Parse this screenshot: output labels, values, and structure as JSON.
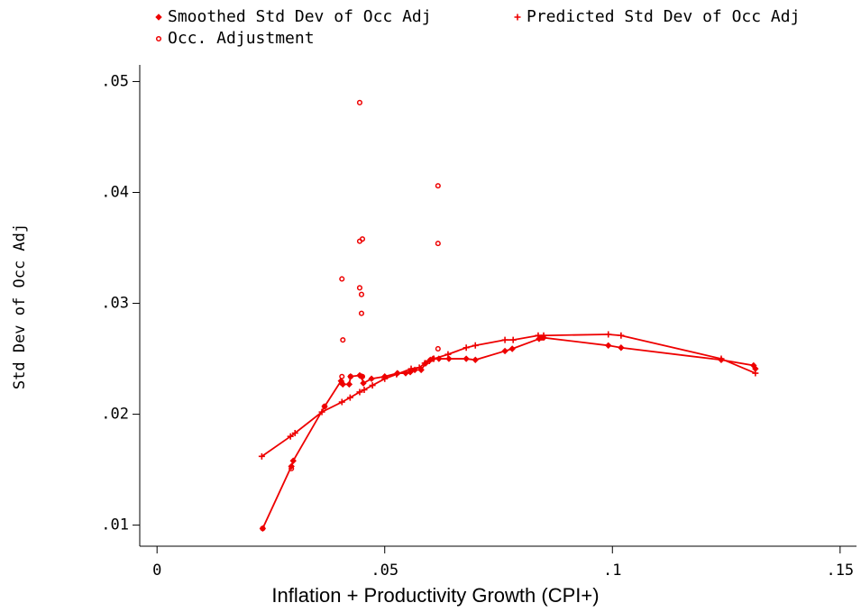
{
  "chart_data": {
    "type": "scatter",
    "x_label": "Inflation + Productivity Growth (CPI+)",
    "y_label": "Std Dev of Occ Adj",
    "xlim": [
      -0.0038,
      0.1536
    ],
    "ylim": [
      0.0081,
      0.0515
    ],
    "xticks": [
      0,
      {
        "value": 0.05,
        "label": ".05"
      },
      {
        "value": 0.1,
        "label": ".1"
      },
      {
        "value": 0.15,
        "label": ".15"
      }
    ],
    "yticks": [
      {
        "value": 0.01,
        "label": ".01"
      },
      {
        "value": 0.02,
        "label": ".02"
      },
      {
        "value": 0.03,
        "label": ".03"
      },
      {
        "value": 0.04,
        "label": ".04"
      },
      {
        "value": 0.05,
        "label": ".05"
      }
    ],
    "series": [
      {
        "name": "Smoothed Std Dev of Occ Adj",
        "color": "#ee0000",
        "marker": "diamond",
        "line": true,
        "x": [
          0.0232,
          0.0295,
          0.0299,
          0.0368,
          0.0404,
          0.0408,
          0.0422,
          0.0425,
          0.0445,
          0.0449,
          0.0453,
          0.0471,
          0.05,
          0.0528,
          0.0546,
          0.0556,
          0.0566,
          0.058,
          0.059,
          0.06,
          0.0606,
          0.0619,
          0.0641,
          0.0679,
          0.0699,
          0.0764,
          0.078,
          0.0839,
          0.0845,
          0.0849,
          0.0991,
          0.1019,
          0.1239,
          0.131,
          0.1314
        ],
        "values": [
          0.0097,
          0.0153,
          0.0158,
          0.0207,
          0.023,
          0.0227,
          0.0227,
          0.0234,
          0.0235,
          0.0234,
          0.0228,
          0.0232,
          0.0234,
          0.0237,
          0.0237,
          0.0238,
          0.024,
          0.024,
          0.0246,
          0.0249,
          0.025,
          0.025,
          0.025,
          0.025,
          0.0249,
          0.0257,
          0.0259,
          0.0268,
          0.0269,
          0.0269,
          0.0262,
          0.026,
          0.0249,
          0.0244,
          0.0241
        ]
      },
      {
        "name": "Predicted Std Dev of Occ Adj",
        "color": "#ee0000",
        "marker": "plus",
        "line": true,
        "x": [
          0.023,
          0.0293,
          0.0303,
          0.0362,
          0.0406,
          0.0424,
          0.0445,
          0.0455,
          0.0473,
          0.05,
          0.0526,
          0.0558,
          0.0576,
          0.0588,
          0.0598,
          0.0608,
          0.0639,
          0.0679,
          0.0699,
          0.0764,
          0.0782,
          0.0837,
          0.0849,
          0.0991,
          0.1019,
          0.1239,
          0.1314
        ],
        "values": [
          0.0162,
          0.018,
          0.0183,
          0.0202,
          0.0211,
          0.0215,
          0.022,
          0.0222,
          0.0226,
          0.0232,
          0.0236,
          0.0241,
          0.0242,
          0.0246,
          0.0248,
          0.025,
          0.0254,
          0.026,
          0.0262,
          0.0267,
          0.0267,
          0.0271,
          0.0271,
          0.0272,
          0.0271,
          0.025,
          0.0237
        ]
      },
      {
        "name": "Occ. Adjustment",
        "color": "#ee0000",
        "marker": "circle",
        "line": false,
        "x": [
          0.0232,
          0.0295,
          0.0368,
          0.0406,
          0.0408,
          0.0406,
          0.0406,
          0.0425,
          0.0445,
          0.0445,
          0.0445,
          0.0451,
          0.0449,
          0.0449,
          0.0451,
          0.0617,
          0.0617,
          0.0617
        ],
        "values": [
          0.0097,
          0.0151,
          0.0207,
          0.0322,
          0.0267,
          0.0234,
          0.0228,
          0.0234,
          0.0481,
          0.0314,
          0.0356,
          0.0358,
          0.0308,
          0.0291,
          0.0234,
          0.0406,
          0.0354,
          0.0259
        ]
      }
    ]
  }
}
